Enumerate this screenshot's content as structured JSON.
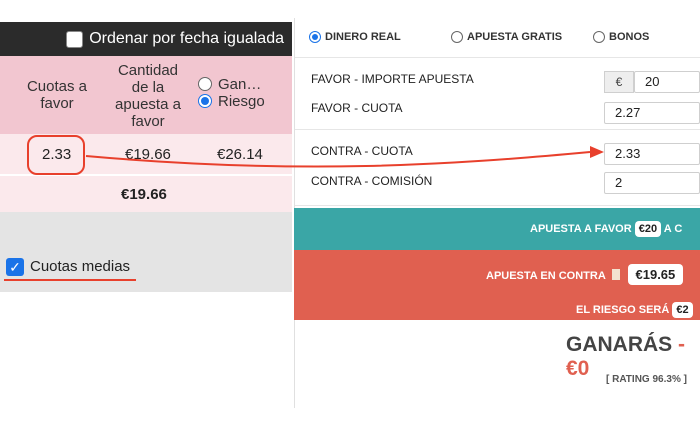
{
  "left": {
    "sort_label": "Ordenar por fecha igualada",
    "headers": {
      "cuotas": [
        "Cuotas a",
        "favor"
      ],
      "cantidad": [
        "Cantidad",
        "de la",
        "apuesta a",
        "favor"
      ],
      "gan": "Gan…",
      "riesgo": "Riesgo"
    },
    "row": {
      "cuota": "2.33",
      "cantidad": "€19.66",
      "valor": "€26.14"
    },
    "sum": "€19.66",
    "avg_label": "Cuotas medias",
    "avg_checked": true
  },
  "right": {
    "tabs": [
      "DINERO REAL",
      "APUESTA GRATIS",
      "BONOS"
    ],
    "selected_tab": "DINERO REAL",
    "favor_importe_label": "FAVOR - IMPORTE APUESTA",
    "favor_importe_currency": "€",
    "favor_importe_value": "20",
    "favor_cuota_label": "FAVOR - CUOTA",
    "favor_cuota_value": "2.27",
    "contra_cuota_label": "CONTRA - CUOTA",
    "contra_cuota_value": "2.33",
    "contra_comision_label": "CONTRA - COMISIÓN",
    "contra_comision_value": "2",
    "bar_favor_label": "APUESTA A FAVOR",
    "bar_favor_amount": "€20",
    "bar_favor_suffix": "A C",
    "bar_contra_label": "APUESTA EN CONTRA",
    "bar_contra_amount": "€19.65",
    "riesgo_label": "EL RIESGO SERÁ",
    "riesgo_amount": "€2",
    "ganaras_label": "GANARÁS",
    "ganaras_value": "-€0",
    "rating": "[ RATING 96.3% ]"
  },
  "colors": {
    "header_pink": "#f2c6d0",
    "row_pink": "#fbe9ec",
    "teal": "#3aa6a6",
    "coral": "#e06050",
    "annotation_red": "#e8402c",
    "accent_blue": "#1a73e8"
  }
}
